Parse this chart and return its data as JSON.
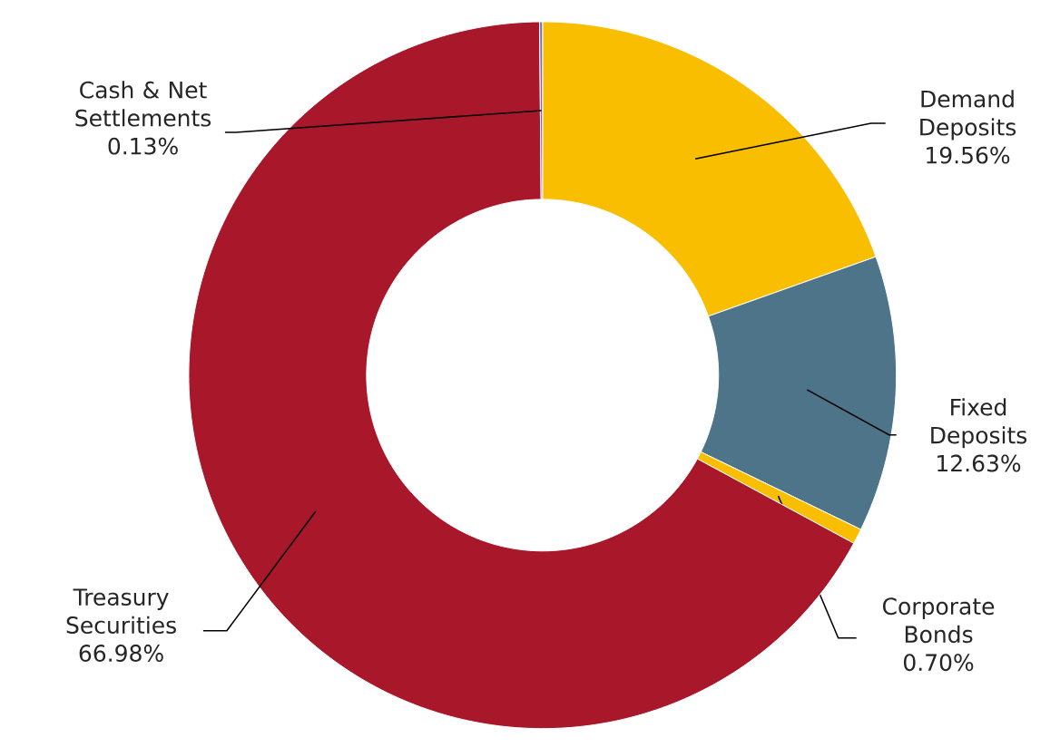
{
  "chart_data": {
    "type": "donut",
    "categories": [
      "Demand Deposits",
      "Fixed Deposits",
      "Corporate Bonds",
      "Treasury Securities",
      "Cash & Net Settlements"
    ],
    "values": [
      19.56,
      12.63,
      0.7,
      66.98,
      0.13
    ],
    "value_labels": [
      "19.56%",
      "12.63%",
      "0.70%",
      "66.98%",
      "0.13%"
    ],
    "colors": [
      "#f9be00",
      "#4e7489",
      "#f9be00",
      "#a9172b",
      "#7b6ea6"
    ]
  }
}
